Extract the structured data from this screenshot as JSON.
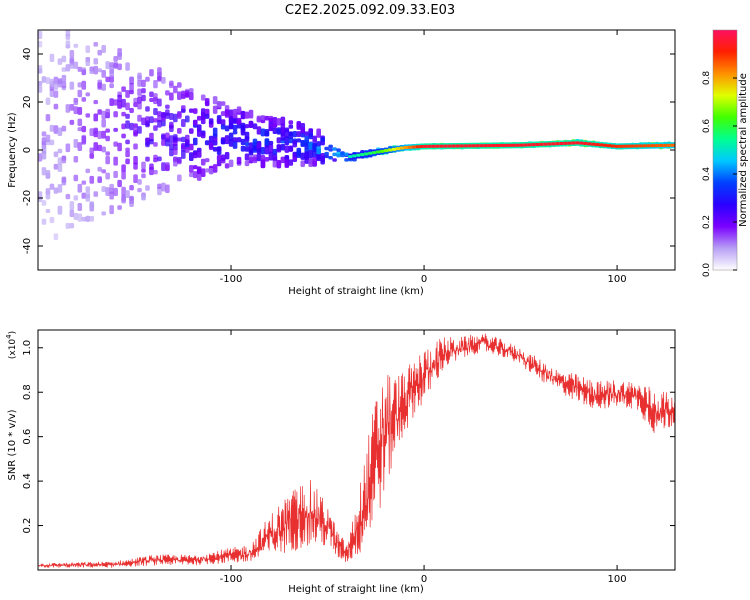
{
  "title": "C2E2.2025.092.09.33.E03",
  "chart_data": [
    {
      "type": "heatmap",
      "name": "spectrogram",
      "xlabel": "Height of straight line (km)",
      "ylabel": "Frequency (Hz)",
      "xlim": [
        -200,
        130
      ],
      "ylim": [
        -50,
        50
      ],
      "xticks": [
        -100,
        0,
        100
      ],
      "xtick_labels": [
        "-100",
        "0",
        "100"
      ],
      "yticks": [
        -40,
        -20,
        0,
        20,
        40
      ],
      "ytick_labels": [
        "-40",
        "-20",
        "0",
        "20",
        "40"
      ],
      "colorbar": {
        "label": "Normalized spectral amplitude",
        "range": [
          0,
          1
        ],
        "ticks": [
          0,
          0.2,
          0.4,
          0.6,
          0.8
        ],
        "tick_labels": [
          "0.0",
          "0.2",
          "0.4",
          "0.6",
          "0.8"
        ],
        "colors": [
          "#ffffff",
          "#b79ff5",
          "#7a00ff",
          "#2a00ff",
          "#0040ff",
          "#00c8ff",
          "#00ff90",
          "#40ff00",
          "#e0ff00",
          "#ff9000",
          "#ff2000",
          "#ff1060"
        ]
      },
      "ridge": {
        "description_points_x": [
          -200,
          -150,
          -100,
          -60,
          -40,
          -25,
          -10,
          0,
          50,
          80,
          100,
          130
        ],
        "center_freq_hz": [
          10,
          8,
          6,
          2,
          -3,
          -1,
          1,
          1.5,
          2,
          3,
          1.5,
          2
        ],
        "spread_hz": [
          50,
          30,
          12,
          8,
          3,
          2,
          1.5,
          1.2,
          1.2,
          1.5,
          1.2,
          1.5
        ],
        "peak_amplitude": [
          0.12,
          0.25,
          0.35,
          0.4,
          0.5,
          0.6,
          0.8,
          0.95,
          0.95,
          0.95,
          0.9,
          0.85
        ]
      }
    },
    {
      "type": "line",
      "name": "snr",
      "xlabel": "Height of straight line (km)",
      "ylabel": "SNR (10 * v/v)",
      "scale_label": "(x10",
      "scale_exponent": "4",
      "scale_suffix": ")",
      "xlim": [
        -200,
        130
      ],
      "ylim": [
        0,
        1.08
      ],
      "xticks": [
        -100,
        0,
        100
      ],
      "xtick_labels": [
        "-100",
        "0",
        "100"
      ],
      "yticks": [
        0.2,
        0.4,
        0.6,
        0.8,
        1.0
      ],
      "ytick_labels": [
        "0.2",
        "0.4",
        "0.6",
        "0.8",
        "1.0"
      ],
      "color": "#e83030",
      "envelope": {
        "x": [
          -200,
          -160,
          -140,
          -120,
          -100,
          -90,
          -80,
          -70,
          -60,
          -50,
          -45,
          -40,
          -35,
          -30,
          -25,
          -20,
          -15,
          -10,
          -5,
          0,
          5,
          10,
          15,
          20,
          30,
          40,
          50,
          60,
          70,
          80,
          90,
          100,
          110,
          120,
          130
        ],
        "low": [
          0.01,
          0.01,
          0.02,
          0.02,
          0.03,
          0.03,
          0.05,
          0.08,
          0.1,
          0.1,
          0.05,
          0.03,
          0.05,
          0.1,
          0.2,
          0.35,
          0.5,
          0.6,
          0.7,
          0.74,
          0.82,
          0.9,
          0.92,
          0.95,
          0.98,
          0.96,
          0.92,
          0.85,
          0.8,
          0.75,
          0.72,
          0.73,
          0.72,
          0.6,
          0.65
        ],
        "high": [
          0.03,
          0.04,
          0.07,
          0.07,
          0.1,
          0.12,
          0.25,
          0.35,
          0.42,
          0.3,
          0.18,
          0.12,
          0.3,
          0.55,
          0.8,
          0.92,
          0.88,
          0.9,
          0.95,
          1.0,
          1.03,
          1.05,
          1.05,
          1.05,
          1.07,
          1.04,
          1.0,
          0.95,
          0.9,
          0.88,
          0.85,
          0.86,
          0.85,
          0.82,
          0.8
        ]
      }
    }
  ]
}
